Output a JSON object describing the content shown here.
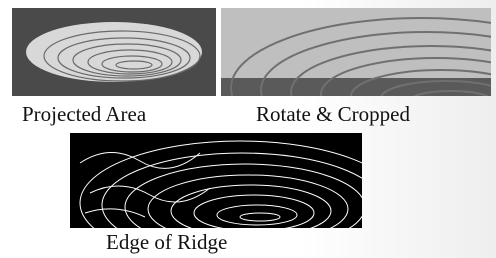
{
  "captions": {
    "projected": "Projected Area",
    "rotated": "Rotate & Cropped",
    "edge": "Edge of Ridge"
  }
}
